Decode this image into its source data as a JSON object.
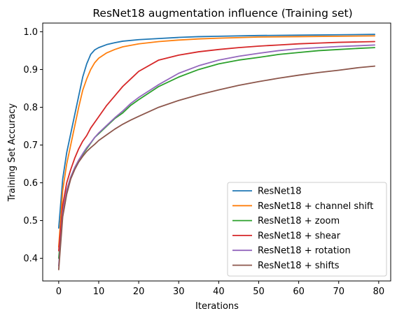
{
  "chart_data": {
    "type": "line",
    "title": "ResNet18 augmentation influence (Training set)",
    "xlabel": "Iterations",
    "ylabel": "Training Set Accuracy",
    "xlim": [
      -4,
      83
    ],
    "ylim": [
      0.34,
      1.023
    ],
    "xticks": [
      0,
      10,
      20,
      30,
      40,
      50,
      60,
      70,
      80
    ],
    "yticks": [
      0.4,
      0.5,
      0.6,
      0.7,
      0.8,
      0.9,
      1.0
    ],
    "ytick_labels": [
      "0.4",
      "0.5",
      "0.6",
      "0.7",
      "0.8",
      "0.9",
      "1.0"
    ],
    "grid": false,
    "legend_position": "lower-right",
    "series": [
      {
        "name": "ResNet18",
        "color": "#1f77b4",
        "x": [
          0,
          1,
          2,
          3,
          4,
          5,
          6,
          7,
          8,
          9,
          10,
          12,
          14,
          16,
          20,
          25,
          30,
          35,
          40,
          50,
          60,
          70,
          79
        ],
        "y": [
          0.48,
          0.61,
          0.68,
          0.73,
          0.78,
          0.83,
          0.88,
          0.915,
          0.94,
          0.952,
          0.958,
          0.966,
          0.971,
          0.975,
          0.979,
          0.982,
          0.985,
          0.987,
          0.988,
          0.99,
          0.991,
          0.992,
          0.993
        ]
      },
      {
        "name": "ResNet18 + channel shift",
        "color": "#ff7f0e",
        "x": [
          0,
          1,
          2,
          3,
          4,
          5,
          6,
          7,
          8,
          9,
          10,
          12,
          14,
          16,
          20,
          25,
          30,
          35,
          40,
          50,
          60,
          70,
          79
        ],
        "y": [
          0.43,
          0.58,
          0.65,
          0.7,
          0.75,
          0.8,
          0.845,
          0.875,
          0.9,
          0.918,
          0.93,
          0.944,
          0.953,
          0.96,
          0.968,
          0.974,
          0.978,
          0.981,
          0.983,
          0.986,
          0.987,
          0.988,
          0.989
        ]
      },
      {
        "name": "ResNet18 + zoom",
        "color": "#2ca02c",
        "x": [
          0,
          1,
          2,
          3,
          4,
          5,
          6,
          7,
          8,
          9,
          10,
          12,
          14,
          16,
          18,
          20,
          25,
          30,
          35,
          40,
          45,
          50,
          55,
          60,
          65,
          70,
          75,
          79
        ],
        "y": [
          0.4,
          0.52,
          0.58,
          0.615,
          0.64,
          0.66,
          0.675,
          0.69,
          0.705,
          0.72,
          0.73,
          0.75,
          0.77,
          0.785,
          0.805,
          0.82,
          0.855,
          0.88,
          0.9,
          0.915,
          0.925,
          0.932,
          0.94,
          0.945,
          0.95,
          0.953,
          0.956,
          0.958
        ]
      },
      {
        "name": "ResNet18 + shear",
        "color": "#d62728",
        "x": [
          0,
          1,
          2,
          3,
          4,
          5,
          6,
          7,
          8,
          9,
          10,
          12,
          14,
          16,
          18,
          20,
          25,
          30,
          35,
          40,
          45,
          50,
          55,
          60,
          65,
          70,
          75,
          79
        ],
        "y": [
          0.42,
          0.54,
          0.6,
          0.635,
          0.665,
          0.69,
          0.71,
          0.725,
          0.745,
          0.76,
          0.775,
          0.805,
          0.83,
          0.855,
          0.875,
          0.895,
          0.925,
          0.938,
          0.947,
          0.953,
          0.958,
          0.962,
          0.965,
          0.968,
          0.97,
          0.972,
          0.973,
          0.974
        ]
      },
      {
        "name": "ResNet18 + rotation",
        "color": "#9467bd",
        "x": [
          0,
          1,
          2,
          3,
          4,
          5,
          6,
          7,
          8,
          9,
          10,
          12,
          14,
          16,
          18,
          20,
          25,
          30,
          35,
          40,
          45,
          50,
          55,
          60,
          65,
          70,
          75,
          79
        ],
        "y": [
          0.38,
          0.52,
          0.58,
          0.615,
          0.64,
          0.66,
          0.677,
          0.693,
          0.706,
          0.72,
          0.732,
          0.752,
          0.772,
          0.79,
          0.81,
          0.826,
          0.86,
          0.89,
          0.91,
          0.925,
          0.935,
          0.943,
          0.95,
          0.955,
          0.958,
          0.961,
          0.963,
          0.965
        ]
      },
      {
        "name": "ResNet18 + shifts",
        "color": "#8c564b",
        "x": [
          0,
          1,
          2,
          3,
          4,
          5,
          6,
          7,
          8,
          9,
          10,
          12,
          14,
          16,
          18,
          20,
          25,
          30,
          35,
          40,
          45,
          50,
          55,
          60,
          65,
          70,
          75,
          79
        ],
        "y": [
          0.37,
          0.51,
          0.57,
          0.61,
          0.635,
          0.655,
          0.67,
          0.683,
          0.693,
          0.702,
          0.712,
          0.727,
          0.742,
          0.755,
          0.766,
          0.776,
          0.8,
          0.818,
          0.833,
          0.846,
          0.858,
          0.868,
          0.877,
          0.885,
          0.892,
          0.898,
          0.905,
          0.909
        ]
      }
    ]
  }
}
